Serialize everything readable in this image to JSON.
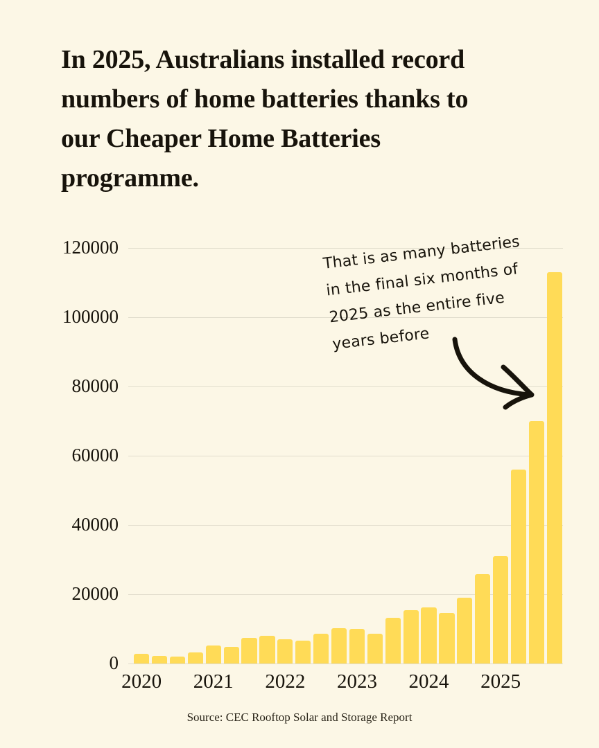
{
  "page": {
    "background": "#FCF7E6",
    "text_color": "#17130B",
    "title_lines": [
      "In 2025, Australians installed record",
      "numbers of home batteries thanks to",
      "our Cheaper Home Batteries",
      "programme."
    ],
    "source": "Source: CEC Rooftop Solar and Storage Report"
  },
  "annotation": {
    "lines": [
      "That is as many batteries",
      "in the final six months of",
      "2025 as the entire five",
      "years before"
    ],
    "arrow_target": "2025 final-quarter bar"
  },
  "chart_data": {
    "type": "bar",
    "title": "",
    "xlabel": "",
    "ylabel": "",
    "x": [
      "2020 Q1",
      "2020 Q2",
      "2020 Q3",
      "2020 Q4",
      "2021 Q1",
      "2021 Q2",
      "2021 Q3",
      "2021 Q4",
      "2022 Q1",
      "2022 Q2",
      "2022 Q3",
      "2022 Q4",
      "2023 Q1",
      "2023 Q2",
      "2023 Q3",
      "2023 Q4",
      "2024 Q1",
      "2024 Q2",
      "2024 Q3",
      "2024 Q4",
      "2025 Q1",
      "2025 Q2",
      "2025 Q3",
      "2025 Q4"
    ],
    "values": [
      2900,
      2300,
      2100,
      3200,
      5300,
      4900,
      7500,
      8100,
      7100,
      6700,
      8600,
      10300,
      10100,
      8600,
      13200,
      15500,
      16200,
      14700,
      19000,
      25800,
      31000,
      56000,
      70000,
      113000
    ],
    "xticks": [
      "2020",
      "2021",
      "2022",
      "2023",
      "2024",
      "2025"
    ],
    "yticks": [
      0,
      20000,
      40000,
      60000,
      80000,
      100000,
      120000
    ],
    "ylim": [
      0,
      120000
    ],
    "grid": "horizontal",
    "legend": false,
    "bar_color": "#FFDB57",
    "grid_color": "#E1DDCD"
  }
}
